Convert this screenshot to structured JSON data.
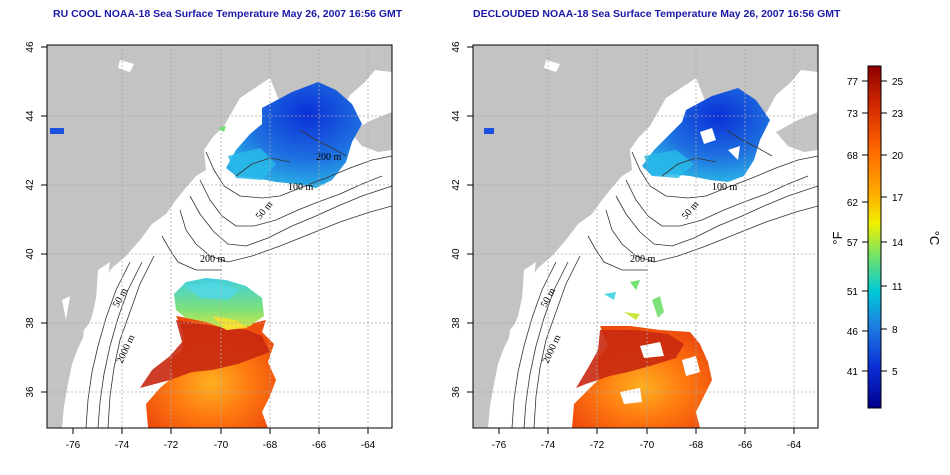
{
  "left_map": {
    "title": "RU COOL NOAA-18 Sea Surface Temperature May 26, 2007 16:56 GMT",
    "x_ticks": [
      "-76",
      "-74",
      "-72",
      "-70",
      "-68",
      "-66",
      "-64"
    ],
    "y_ticks": [
      "46",
      "44",
      "42",
      "40",
      "38",
      "36"
    ],
    "contour_labels": [
      "200 m",
      "100 m",
      "50 m",
      "200 m",
      "50 m",
      "2000 m"
    ]
  },
  "right_map": {
    "title": "DECLOUDED NOAA-18 Sea Surface Temperature May 26, 2007 16:56 GMT",
    "x_ticks": [
      "-76",
      "-74",
      "-72",
      "-70",
      "-68",
      "-66",
      "-64"
    ],
    "y_ticks": [
      "46",
      "44",
      "42",
      "40",
      "38",
      "36"
    ],
    "contour_labels": [
      "100 m",
      "50 m",
      "200 m",
      "50 m",
      "2000 m"
    ]
  },
  "colorbar": {
    "fahrenheit_label": "°F",
    "celsius_label": "°C",
    "fahrenheit_ticks": [
      "77",
      "73",
      "68",
      "62",
      "57",
      "51",
      "46",
      "41"
    ],
    "celsius_ticks": [
      "25",
      "23",
      "20",
      "17",
      "14",
      "11",
      "8",
      "5"
    ],
    "colors": [
      "#8b0000",
      "#d42a00",
      "#ff6a00",
      "#ffb000",
      "#f0f000",
      "#6de26d",
      "#00c8d8",
      "#1e7fe0",
      "#0a2fd8",
      "#00008b"
    ]
  },
  "colors": {
    "land": "#c3c3c3",
    "title": "#1a1aa6",
    "grid": "#a8a8a8"
  }
}
